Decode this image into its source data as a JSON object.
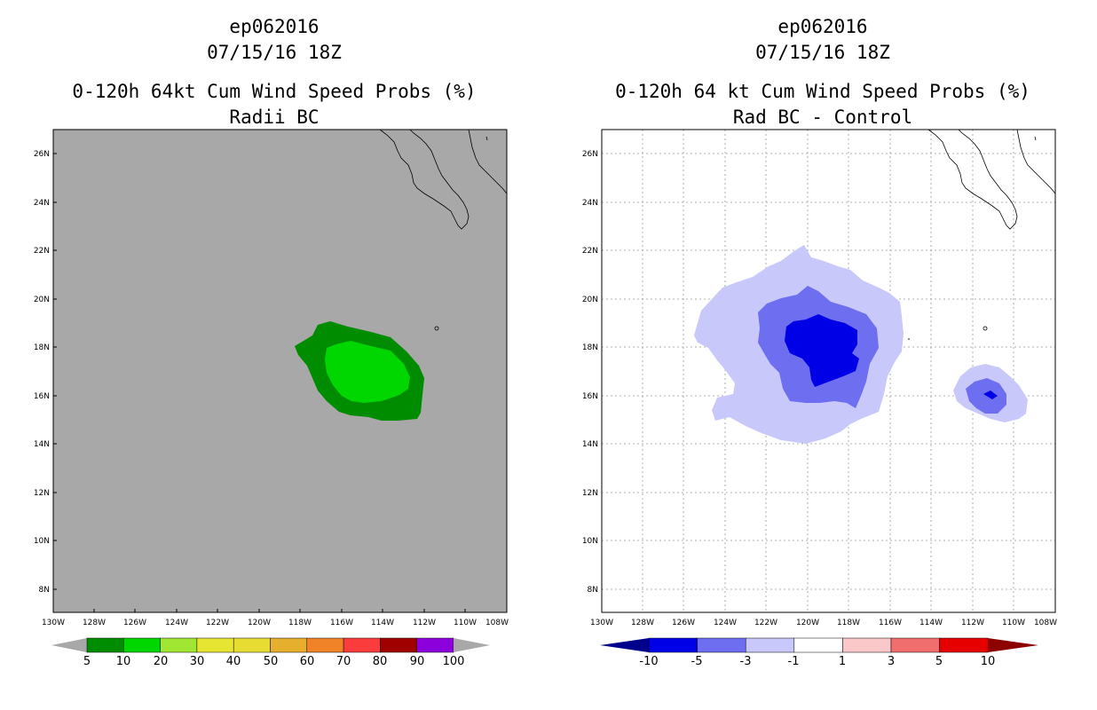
{
  "panels": [
    {
      "storm_id": "ep062016",
      "datetime": "07/15/16 18Z",
      "title": "0-120h 64kt Cum Wind Speed Probs (%)",
      "subtitle": "Radii BC",
      "background": "#a8a8a8",
      "colorbar_labels": [
        "5",
        "10",
        "20",
        "30",
        "40",
        "50",
        "60",
        "70",
        "80",
        "90",
        "100"
      ],
      "colorbar_colors": [
        "#008c00",
        "#00d600",
        "#a0e632",
        "#e6e632",
        "#e6dc32",
        "#e6af2d",
        "#f08228",
        "#fa3c3c",
        "#a00000",
        "#8c00dc"
      ],
      "fill_colors": {
        "p5": "#008c00",
        "p10": "#00d600"
      }
    },
    {
      "storm_id": "ep062016",
      "datetime": "07/15/16 18Z",
      "title": "0-120h 64 kt Cum Wind Speed Probs (%)",
      "subtitle": "Rad BC - Control",
      "background": "#ffffff",
      "colorbar_labels": [
        "-10",
        "-5",
        "-3",
        "-1",
        "1",
        "3",
        "5",
        "10"
      ],
      "colorbar_colors": [
        "#0000e6",
        "#6e6ef0",
        "#c8c8fa",
        "#ffffff",
        "#fac8c8",
        "#f06e6e",
        "#e60000"
      ],
      "fill_colors": {
        "n1": "#c8c8fa",
        "n3": "#6e6ef0",
        "n5": "#0000e6"
      }
    }
  ],
  "axes": {
    "lat_labels": [
      "26N",
      "24N",
      "22N",
      "20N",
      "18N",
      "16N",
      "14N",
      "12N",
      "10N",
      "8N"
    ],
    "lon_labels": [
      "130W",
      "128W",
      "126W",
      "124W",
      "122W",
      "120W",
      "118W",
      "116W",
      "114W",
      "112W",
      "110W",
      "108W"
    ]
  }
}
